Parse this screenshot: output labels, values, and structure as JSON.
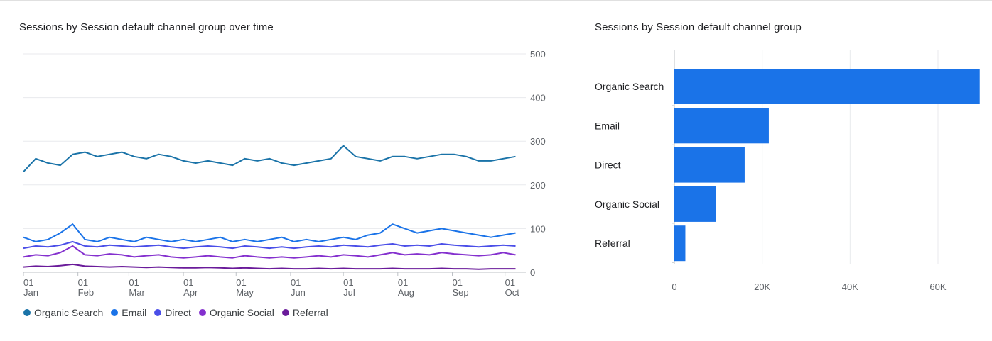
{
  "cards": {
    "left_title": "Sessions by Session default channel group over time",
    "right_title": "Sessions by Session default channel group"
  },
  "chart_data": [
    {
      "type": "line",
      "title": "Sessions by Session default channel group over time",
      "ylim": [
        0,
        500
      ],
      "yticks": [
        0,
        100,
        200,
        300,
        400,
        500
      ],
      "xlim": [
        "2024-01-01",
        "2024-10-08"
      ],
      "xticks": [
        {
          "date": "2024-01-01",
          "day": "01",
          "month": "Jan"
        },
        {
          "date": "2024-02-01",
          "day": "01",
          "month": "Feb"
        },
        {
          "date": "2024-03-01",
          "day": "01",
          "month": "Mar"
        },
        {
          "date": "2024-04-01",
          "day": "01",
          "month": "Apr"
        },
        {
          "date": "2024-05-01",
          "day": "01",
          "month": "May"
        },
        {
          "date": "2024-06-01",
          "day": "01",
          "month": "Jun"
        },
        {
          "date": "2024-07-01",
          "day": "01",
          "month": "Jul"
        },
        {
          "date": "2024-08-01",
          "day": "01",
          "month": "Aug"
        },
        {
          "date": "2024-09-01",
          "day": "01",
          "month": "Sep"
        },
        {
          "date": "2024-10-01",
          "day": "01",
          "month": "Oct"
        }
      ],
      "grid": true,
      "legend_position": "bottom",
      "series": [
        {
          "name": "Organic Search",
          "color": "#1a73a8",
          "frequency": "weekly",
          "x": [
            "2024-01-01",
            "2024-01-08",
            "2024-01-15",
            "2024-01-22",
            "2024-01-29",
            "2024-02-05",
            "2024-02-12",
            "2024-02-19",
            "2024-02-26",
            "2024-03-04",
            "2024-03-11",
            "2024-03-18",
            "2024-03-25",
            "2024-04-01",
            "2024-04-08",
            "2024-04-15",
            "2024-04-22",
            "2024-04-29",
            "2024-05-06",
            "2024-05-13",
            "2024-05-20",
            "2024-05-27",
            "2024-06-03",
            "2024-06-10",
            "2024-06-17",
            "2024-06-24",
            "2024-07-01",
            "2024-07-08",
            "2024-07-15",
            "2024-07-22",
            "2024-07-29",
            "2024-08-05",
            "2024-08-12",
            "2024-08-19",
            "2024-08-26",
            "2024-09-02",
            "2024-09-09",
            "2024-09-16",
            "2024-09-23",
            "2024-09-30",
            "2024-10-07"
          ],
          "y": [
            230,
            260,
            250,
            245,
            270,
            275,
            265,
            270,
            275,
            265,
            260,
            270,
            265,
            255,
            250,
            255,
            250,
            245,
            260,
            255,
            260,
            250,
            245,
            250,
            255,
            260,
            290,
            265,
            260,
            255,
            265,
            265,
            260,
            265,
            270,
            270,
            265,
            255,
            255,
            260,
            265
          ]
        },
        {
          "name": "Email",
          "color": "#1a73e8",
          "frequency": "weekly",
          "x": [
            "2024-01-01",
            "2024-01-08",
            "2024-01-15",
            "2024-01-22",
            "2024-01-29",
            "2024-02-05",
            "2024-02-12",
            "2024-02-19",
            "2024-02-26",
            "2024-03-04",
            "2024-03-11",
            "2024-03-18",
            "2024-03-25",
            "2024-04-01",
            "2024-04-08",
            "2024-04-15",
            "2024-04-22",
            "2024-04-29",
            "2024-05-06",
            "2024-05-13",
            "2024-05-20",
            "2024-05-27",
            "2024-06-03",
            "2024-06-10",
            "2024-06-17",
            "2024-06-24",
            "2024-07-01",
            "2024-07-08",
            "2024-07-15",
            "2024-07-22",
            "2024-07-29",
            "2024-08-05",
            "2024-08-12",
            "2024-08-19",
            "2024-08-26",
            "2024-09-02",
            "2024-09-09",
            "2024-09-16",
            "2024-09-23",
            "2024-09-30",
            "2024-10-07"
          ],
          "y": [
            80,
            70,
            75,
            90,
            110,
            75,
            70,
            80,
            75,
            70,
            80,
            75,
            70,
            75,
            70,
            75,
            80,
            70,
            75,
            70,
            75,
            80,
            70,
            75,
            70,
            75,
            80,
            75,
            85,
            90,
            110,
            100,
            90,
            95,
            100,
            95,
            90,
            85,
            80,
            85,
            90
          ]
        },
        {
          "name": "Direct",
          "color": "#4a4ee8",
          "frequency": "weekly",
          "x": [
            "2024-01-01",
            "2024-01-08",
            "2024-01-15",
            "2024-01-22",
            "2024-01-29",
            "2024-02-05",
            "2024-02-12",
            "2024-02-19",
            "2024-02-26",
            "2024-03-04",
            "2024-03-11",
            "2024-03-18",
            "2024-03-25",
            "2024-04-01",
            "2024-04-08",
            "2024-04-15",
            "2024-04-22",
            "2024-04-29",
            "2024-05-06",
            "2024-05-13",
            "2024-05-20",
            "2024-05-27",
            "2024-06-03",
            "2024-06-10",
            "2024-06-17",
            "2024-06-24",
            "2024-07-01",
            "2024-07-08",
            "2024-07-15",
            "2024-07-22",
            "2024-07-29",
            "2024-08-05",
            "2024-08-12",
            "2024-08-19",
            "2024-08-26",
            "2024-09-02",
            "2024-09-09",
            "2024-09-16",
            "2024-09-23",
            "2024-09-30",
            "2024-10-07"
          ],
          "y": [
            55,
            60,
            58,
            62,
            70,
            60,
            58,
            62,
            60,
            58,
            60,
            62,
            58,
            55,
            58,
            60,
            58,
            55,
            60,
            58,
            55,
            58,
            55,
            58,
            60,
            58,
            62,
            60,
            58,
            62,
            65,
            60,
            62,
            60,
            65,
            62,
            60,
            58,
            60,
            62,
            60
          ]
        },
        {
          "name": "Organic Social",
          "color": "#8430ce",
          "frequency": "weekly",
          "x": [
            "2024-01-01",
            "2024-01-08",
            "2024-01-15",
            "2024-01-22",
            "2024-01-29",
            "2024-02-05",
            "2024-02-12",
            "2024-02-19",
            "2024-02-26",
            "2024-03-04",
            "2024-03-11",
            "2024-03-18",
            "2024-03-25",
            "2024-04-01",
            "2024-04-08",
            "2024-04-15",
            "2024-04-22",
            "2024-04-29",
            "2024-05-06",
            "2024-05-13",
            "2024-05-20",
            "2024-05-27",
            "2024-06-03",
            "2024-06-10",
            "2024-06-17",
            "2024-06-24",
            "2024-07-01",
            "2024-07-08",
            "2024-07-15",
            "2024-07-22",
            "2024-07-29",
            "2024-08-05",
            "2024-08-12",
            "2024-08-19",
            "2024-08-26",
            "2024-09-02",
            "2024-09-09",
            "2024-09-16",
            "2024-09-23",
            "2024-09-30",
            "2024-10-07"
          ],
          "y": [
            35,
            40,
            38,
            45,
            60,
            40,
            38,
            42,
            40,
            35,
            38,
            40,
            35,
            33,
            35,
            38,
            35,
            33,
            38,
            35,
            33,
            35,
            33,
            35,
            38,
            35,
            40,
            38,
            35,
            40,
            45,
            40,
            42,
            40,
            45,
            42,
            40,
            38,
            40,
            45,
            40
          ]
        },
        {
          "name": "Referral",
          "color": "#6a1b9a",
          "frequency": "weekly",
          "x": [
            "2024-01-01",
            "2024-01-08",
            "2024-01-15",
            "2024-01-22",
            "2024-01-29",
            "2024-02-05",
            "2024-02-12",
            "2024-02-19",
            "2024-02-26",
            "2024-03-04",
            "2024-03-11",
            "2024-03-18",
            "2024-03-25",
            "2024-04-01",
            "2024-04-08",
            "2024-04-15",
            "2024-04-22",
            "2024-04-29",
            "2024-05-06",
            "2024-05-13",
            "2024-05-20",
            "2024-05-27",
            "2024-06-03",
            "2024-06-10",
            "2024-06-17",
            "2024-06-24",
            "2024-07-01",
            "2024-07-08",
            "2024-07-15",
            "2024-07-22",
            "2024-07-29",
            "2024-08-05",
            "2024-08-12",
            "2024-08-19",
            "2024-08-26",
            "2024-09-02",
            "2024-09-09",
            "2024-09-16",
            "2024-09-23",
            "2024-09-30",
            "2024-10-07"
          ],
          "y": [
            12,
            14,
            13,
            15,
            18,
            14,
            13,
            12,
            13,
            12,
            11,
            12,
            11,
            10,
            10,
            11,
            10,
            9,
            10,
            9,
            8,
            9,
            8,
            8,
            9,
            8,
            9,
            8,
            8,
            8,
            9,
            8,
            8,
            8,
            9,
            8,
            8,
            7,
            8,
            8,
            8
          ]
        }
      ]
    },
    {
      "type": "bar",
      "orientation": "horizontal",
      "title": "Sessions by Session default channel group",
      "categories": [
        "Organic Search",
        "Email",
        "Direct",
        "Organic Social",
        "Referral"
      ],
      "values": [
        69500,
        21500,
        16000,
        9500,
        2500
      ],
      "xlim": [
        0,
        70000
      ],
      "xticks": [
        0,
        20000,
        40000,
        60000
      ],
      "xtick_labels": [
        "0",
        "20K",
        "40K",
        "60K"
      ],
      "grid": true,
      "color": "#1a73e8"
    }
  ]
}
